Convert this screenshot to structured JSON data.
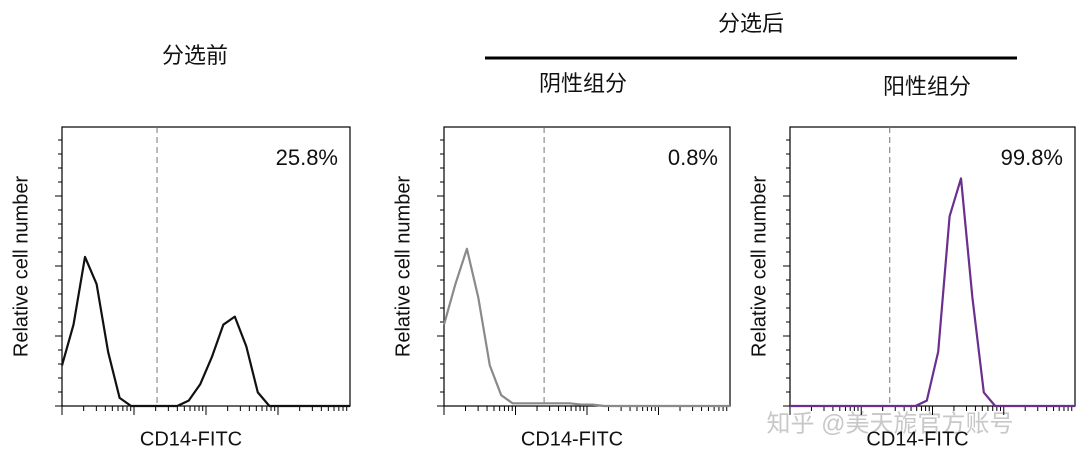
{
  "header": {
    "group_title": "分选后"
  },
  "watermark": "知乎 @美天旎官方账号",
  "chart_data": [
    {
      "type": "line",
      "title": "分选前",
      "x_label": "CD14-FITC",
      "y_label": "Relative cell number",
      "annotation": "25.8%",
      "color": "#111111",
      "gate_x": 33,
      "xlim": [
        0,
        100
      ],
      "ylim": [
        0,
        100
      ],
      "x": [
        0,
        4,
        8,
        12,
        16,
        20,
        24,
        28,
        32,
        36,
        40,
        44,
        48,
        52,
        56,
        60,
        64,
        68,
        72,
        76,
        80,
        84,
        88,
        92,
        96,
        100
      ],
      "values": [
        15,
        30,
        55,
        45,
        20,
        3,
        0,
        0,
        0,
        0,
        0,
        2,
        8,
        18,
        30,
        33,
        22,
        5,
        0,
        0,
        0,
        0,
        0,
        0,
        0,
        0
      ]
    },
    {
      "type": "line",
      "title": "阴性组分",
      "x_label": "CD14-FITC",
      "y_label": "Relative cell number",
      "annotation": "0.8%",
      "color": "#8a8a8a",
      "gate_x": 35,
      "xlim": [
        0,
        100
      ],
      "ylim": [
        0,
        100
      ],
      "x": [
        0,
        4,
        8,
        12,
        16,
        20,
        24,
        28,
        32,
        36,
        40,
        44,
        48,
        52,
        56,
        60,
        64,
        68,
        72,
        76,
        80,
        84,
        88,
        92,
        96,
        100
      ],
      "values": [
        30,
        45,
        58,
        40,
        15,
        4,
        1,
        1,
        1,
        1,
        1,
        1,
        0.5,
        0.5,
        0,
        0,
        0,
        0,
        0,
        0,
        0,
        0,
        0,
        0,
        0,
        0
      ]
    },
    {
      "type": "line",
      "title": "阳性组分",
      "x_label": "CD14-FITC",
      "y_label": "Relative cell number",
      "annotation": "99.8%",
      "color": "#6a2f8f",
      "gate_x": 35,
      "xlim": [
        0,
        100
      ],
      "ylim": [
        0,
        100
      ],
      "x": [
        0,
        4,
        8,
        12,
        16,
        20,
        24,
        28,
        32,
        36,
        40,
        44,
        48,
        52,
        56,
        60,
        64,
        68,
        72,
        76,
        80,
        84,
        88,
        92,
        96,
        100
      ],
      "values": [
        0,
        0,
        0,
        0,
        0,
        0,
        0,
        0,
        0,
        0,
        0,
        0,
        2,
        20,
        70,
        84,
        40,
        5,
        0,
        0,
        0,
        0,
        0,
        0,
        0,
        0
      ]
    }
  ]
}
